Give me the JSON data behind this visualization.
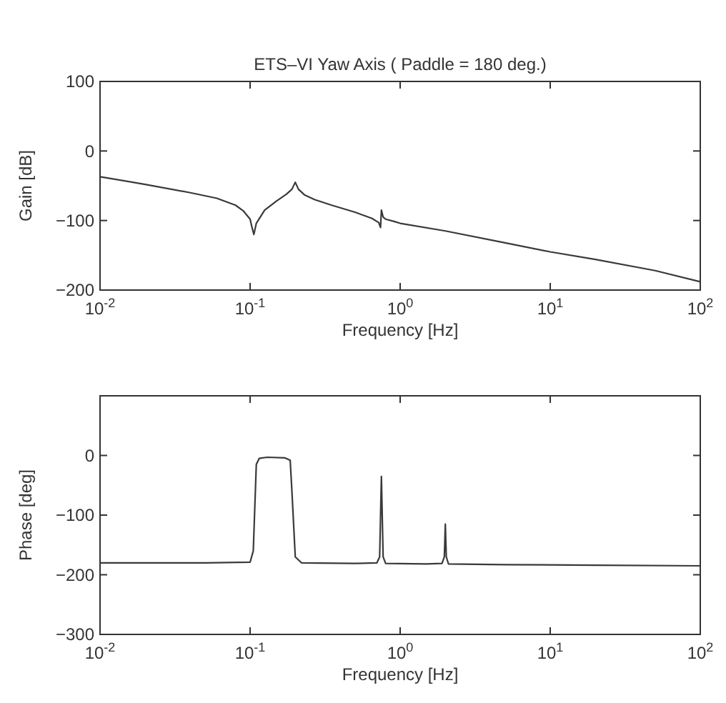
{
  "chart_data": [
    {
      "type": "line",
      "title": "ETS–VI Yaw Axis ( Paddle = 180 deg.)",
      "xlabel": "Frequency [Hz]",
      "ylabel": "Gain [dB]",
      "log": "x",
      "xlim": [
        0.01,
        100
      ],
      "ylim": [
        -200,
        100
      ],
      "xticks": [
        {
          "value": 0.01,
          "label": "10$^{-2}$"
        },
        {
          "value": 0.1,
          "label": "10$^{-1}$"
        },
        {
          "value": 1,
          "label": "10$^{0}$"
        },
        {
          "value": 10,
          "label": "10$^{1}$"
        },
        {
          "value": 100,
          "label": "10$^{2}$"
        }
      ],
      "yticks": [
        -200,
        -100,
        0,
        100
      ],
      "series": [
        {
          "color": "#3a3a3a",
          "x": [
            0.01,
            0.02,
            0.04,
            0.06,
            0.08,
            0.09,
            0.1,
            0.103,
            0.106,
            0.11,
            0.125,
            0.15,
            0.175,
            0.19,
            0.2,
            0.21,
            0.23,
            0.27,
            0.35,
            0.5,
            0.65,
            0.72,
            0.74,
            0.75,
            0.77,
            0.8,
            0.9,
            1,
            2,
            5,
            10,
            20,
            50,
            100
          ],
          "values": [
            -37,
            -48,
            -60,
            -68,
            -78,
            -86,
            -98,
            -110,
            -120,
            -104,
            -85,
            -72,
            -62,
            -55,
            -45,
            -55,
            -63,
            -70,
            -78,
            -88,
            -97,
            -103,
            -110,
            -85,
            -95,
            -98,
            -101,
            -104,
            -115,
            -132,
            -145,
            -156,
            -172,
            -188
          ]
        }
      ]
    },
    {
      "type": "line",
      "xlabel": "Frequency [Hz]",
      "ylabel": "Phase [deg]",
      "log": "x",
      "xlim": [
        0.01,
        100
      ],
      "ylim": [
        -300,
        100
      ],
      "xticks": [
        {
          "value": 0.01,
          "label": "10$^{-2}$"
        },
        {
          "value": 0.1,
          "label": "10$^{-1}$"
        },
        {
          "value": 1,
          "label": "10$^{0}$"
        },
        {
          "value": 10,
          "label": "10$^{1}$"
        },
        {
          "value": 100,
          "label": "10$^{2}$"
        }
      ],
      "yticks": [
        -300,
        -200,
        -100,
        0,
        {
          "value": 100,
          "label": null
        }
      ],
      "series": [
        {
          "color": "#3a3a3a",
          "x": [
            0.01,
            0.05,
            0.1,
            0.105,
            0.11,
            0.115,
            0.13,
            0.17,
            0.185,
            0.19,
            0.2,
            0.22,
            0.5,
            0.7,
            0.73,
            0.75,
            0.77,
            0.8,
            1.5,
            1.9,
            1.97,
            2.0,
            2.03,
            2.1,
            5,
            20,
            100
          ],
          "values": [
            -180,
            -180,
            -179,
            -160,
            -15,
            -5,
            -3,
            -4,
            -8,
            -60,
            -170,
            -180,
            -181,
            -180,
            -170,
            -35,
            -170,
            -181,
            -182,
            -181,
            -170,
            -115,
            -170,
            -182,
            -183,
            -184,
            -185
          ]
        }
      ]
    }
  ]
}
